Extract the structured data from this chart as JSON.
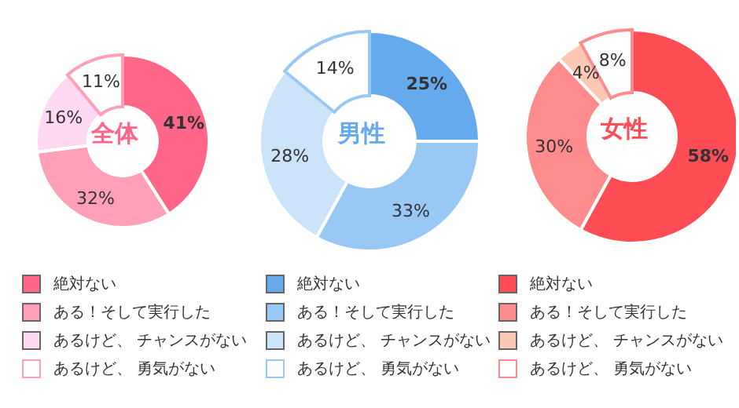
{
  "chart_data": [
    {
      "type": "donut",
      "title": "全体",
      "categories": [
        "絶対ない",
        "ある！そして実行した",
        "あるけど、 チャンスがない",
        "あるけど、 勇気がない"
      ],
      "values": [
        41,
        32,
        16,
        11
      ],
      "value_labels": [
        "41%",
        "32%",
        "16%",
        "11%"
      ],
      "colors": [
        "#ff6688",
        "#ffa0b8",
        "#ffd8f4",
        "#ffffff"
      ],
      "legend": "bottom"
    },
    {
      "type": "donut",
      "title": "男性",
      "categories": [
        "絶対ない",
        "ある！そして実行した",
        "あるけど、 チャンスがない",
        "あるけど、 勇気がない"
      ],
      "values": [
        25,
        33,
        28,
        14
      ],
      "value_labels": [
        "25%",
        "33%",
        "28%",
        "14%"
      ],
      "colors": [
        "#66aaee",
        "#99c8f4",
        "#cce4fa",
        "#ffffff"
      ],
      "legend": "bottom"
    },
    {
      "type": "donut",
      "title": "女性",
      "categories": [
        "絶対ない",
        "ある！そして実行した",
        "あるけど、 チャンスがない",
        "あるけど、 勇気がない"
      ],
      "values": [
        58,
        30,
        4,
        8
      ],
      "value_labels": [
        "58%",
        "30%",
        "4%",
        "8%"
      ],
      "colors": [
        "#ff4d55",
        "#ff8c8c",
        "#ffc8b4",
        "#ffffff"
      ],
      "legend": "bottom"
    }
  ]
}
